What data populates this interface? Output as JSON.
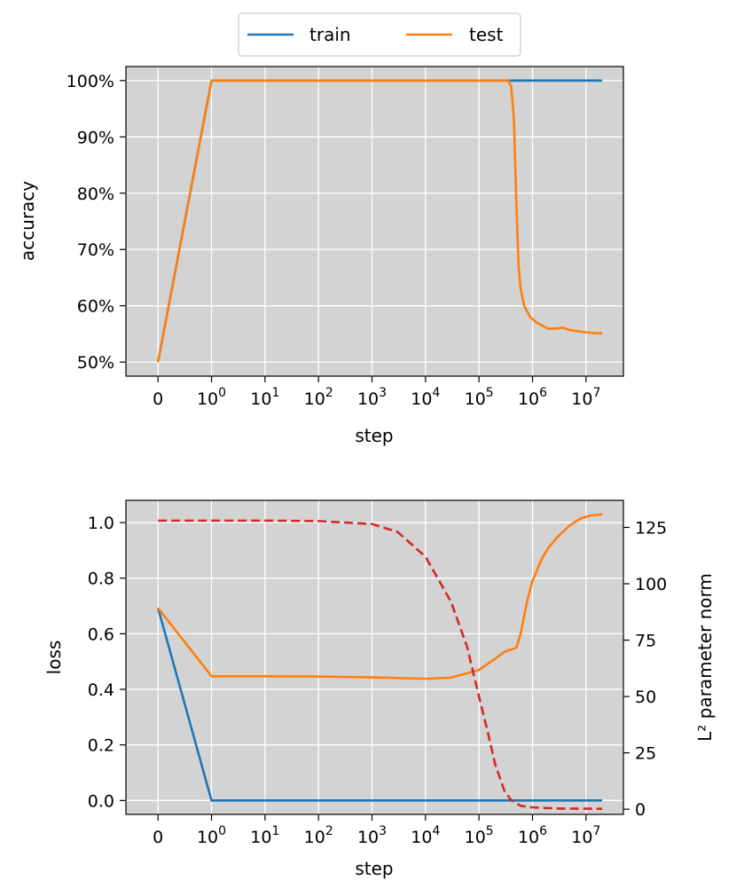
{
  "colors": {
    "train": "#1f77b4",
    "test": "#ff7f0e",
    "norm": "#d62728",
    "plot_bg": "#d3d3d3",
    "grid": "#ffffff"
  },
  "legend": {
    "placement": "top-center",
    "entries": [
      {
        "label": "train",
        "color": "#1f77b4"
      },
      {
        "label": "test",
        "color": "#ff7f0e"
      }
    ]
  },
  "chart_data": [
    {
      "type": "line",
      "xscale": "symlog",
      "xlabel": "step",
      "ylabel": "accuracy",
      "xlim": [
        -0.6,
        50000000
      ],
      "ylim": [
        0.475,
        1.025
      ],
      "grid": true,
      "x_ticks": [
        {
          "value": 0,
          "base": "0",
          "exp": ""
        },
        {
          "value": 1,
          "base": "10",
          "exp": "0"
        },
        {
          "value": 10,
          "base": "10",
          "exp": "1"
        },
        {
          "value": 100,
          "base": "10",
          "exp": "2"
        },
        {
          "value": 1000,
          "base": "10",
          "exp": "3"
        },
        {
          "value": 10000,
          "base": "10",
          "exp": "4"
        },
        {
          "value": 100000,
          "base": "10",
          "exp": "5"
        },
        {
          "value": 1000000,
          "base": "10",
          "exp": "6"
        },
        {
          "value": 10000000,
          "base": "10",
          "exp": "7"
        }
      ],
      "y_ticks": [
        {
          "value": 0.5,
          "label": "50%"
        },
        {
          "value": 0.6,
          "label": "60%"
        },
        {
          "value": 0.7,
          "label": "70%"
        },
        {
          "value": 0.8,
          "label": "80%"
        },
        {
          "value": 0.9,
          "label": "90%"
        },
        {
          "value": 1.0,
          "label": "100%"
        }
      ],
      "series": [
        {
          "name": "train",
          "points": [
            [
              0,
              0.5
            ],
            [
              1,
              1.0
            ],
            [
              20000000,
              1.0
            ]
          ]
        },
        {
          "name": "test",
          "points": [
            [
              0,
              0.5
            ],
            [
              1,
              1.0
            ],
            [
              10,
              1.0
            ],
            [
              1000,
              1.0
            ],
            [
              100000,
              1.0
            ],
            [
              350000,
              1.0
            ],
            [
              400000,
              0.99
            ],
            [
              450000,
              0.93
            ],
            [
              500000,
              0.78
            ],
            [
              550000,
              0.67
            ],
            [
              600000,
              0.63
            ],
            [
              700000,
              0.6
            ],
            [
              900000,
              0.58
            ],
            [
              1200000,
              0.57
            ],
            [
              1500000,
              0.565
            ],
            [
              2000000,
              0.559
            ],
            [
              3000000,
              0.56
            ],
            [
              3700000,
              0.561
            ],
            [
              5000000,
              0.557
            ],
            [
              8000000,
              0.554
            ],
            [
              12000000,
              0.552
            ],
            [
              20000000,
              0.551
            ]
          ]
        }
      ]
    },
    {
      "type": "line",
      "xscale": "symlog",
      "xlabel": "step",
      "ylabel": "loss",
      "ylabel_right": "L² parameter norm",
      "xlim": [
        -0.6,
        50000000
      ],
      "ylim": [
        -0.05,
        1.08
      ],
      "ylim_right": [
        -2.3,
        137
      ],
      "grid": true,
      "x_ticks": [
        {
          "value": 0,
          "base": "0",
          "exp": ""
        },
        {
          "value": 1,
          "base": "10",
          "exp": "0"
        },
        {
          "value": 10,
          "base": "10",
          "exp": "1"
        },
        {
          "value": 100,
          "base": "10",
          "exp": "2"
        },
        {
          "value": 1000,
          "base": "10",
          "exp": "3"
        },
        {
          "value": 10000,
          "base": "10",
          "exp": "4"
        },
        {
          "value": 100000,
          "base": "10",
          "exp": "5"
        },
        {
          "value": 1000000,
          "base": "10",
          "exp": "6"
        },
        {
          "value": 10000000,
          "base": "10",
          "exp": "7"
        }
      ],
      "y_ticks": [
        {
          "value": 0.0,
          "label": "0.0"
        },
        {
          "value": 0.2,
          "label": "0.2"
        },
        {
          "value": 0.4,
          "label": "0.4"
        },
        {
          "value": 0.6,
          "label": "0.6"
        },
        {
          "value": 0.8,
          "label": "0.8"
        },
        {
          "value": 1.0,
          "label": "1.0"
        }
      ],
      "y_ticks_right": [
        {
          "value": 0,
          "label": "0"
        },
        {
          "value": 25,
          "label": "25"
        },
        {
          "value": 50,
          "label": "50"
        },
        {
          "value": 75,
          "label": "75"
        },
        {
          "value": 100,
          "label": "100"
        },
        {
          "value": 125,
          "label": "125"
        }
      ],
      "series": [
        {
          "name": "train",
          "axis": "left",
          "points": [
            [
              0,
              0.693
            ],
            [
              1,
              0.0
            ],
            [
              20000000,
              0.0
            ]
          ]
        },
        {
          "name": "test",
          "axis": "left",
          "points": [
            [
              0,
              0.693
            ],
            [
              1,
              0.447
            ],
            [
              10,
              0.447
            ],
            [
              100,
              0.446
            ],
            [
              1000,
              0.443
            ],
            [
              10000,
              0.438
            ],
            [
              30000,
              0.442
            ],
            [
              100000,
              0.47
            ],
            [
              200000,
              0.51
            ],
            [
              300000,
              0.535
            ],
            [
              500000,
              0.55
            ],
            [
              600000,
              0.6
            ],
            [
              800000,
              0.72
            ],
            [
              1000000,
              0.79
            ],
            [
              1500000,
              0.87
            ],
            [
              2000000,
              0.91
            ],
            [
              3000000,
              0.95
            ],
            [
              5000000,
              0.99
            ],
            [
              8000000,
              1.015
            ],
            [
              12000000,
              1.025
            ],
            [
              20000000,
              1.03
            ]
          ]
        },
        {
          "name": "",
          "axis": "right",
          "dashed": true,
          "points": [
            [
              0,
              128
            ],
            [
              10,
              128
            ],
            [
              100,
              127.8
            ],
            [
              1000,
              126.5
            ],
            [
              3000,
              123
            ],
            [
              10000,
              112
            ],
            [
              30000,
              92
            ],
            [
              60000,
              72
            ],
            [
              100000,
              50
            ],
            [
              150000,
              33
            ],
            [
              200000,
              20
            ],
            [
              300000,
              8
            ],
            [
              400000,
              4
            ],
            [
              600000,
              1.5
            ],
            [
              1000000,
              0.8
            ],
            [
              3000000,
              0.3
            ],
            [
              20000000,
              0.2
            ]
          ]
        }
      ]
    }
  ]
}
